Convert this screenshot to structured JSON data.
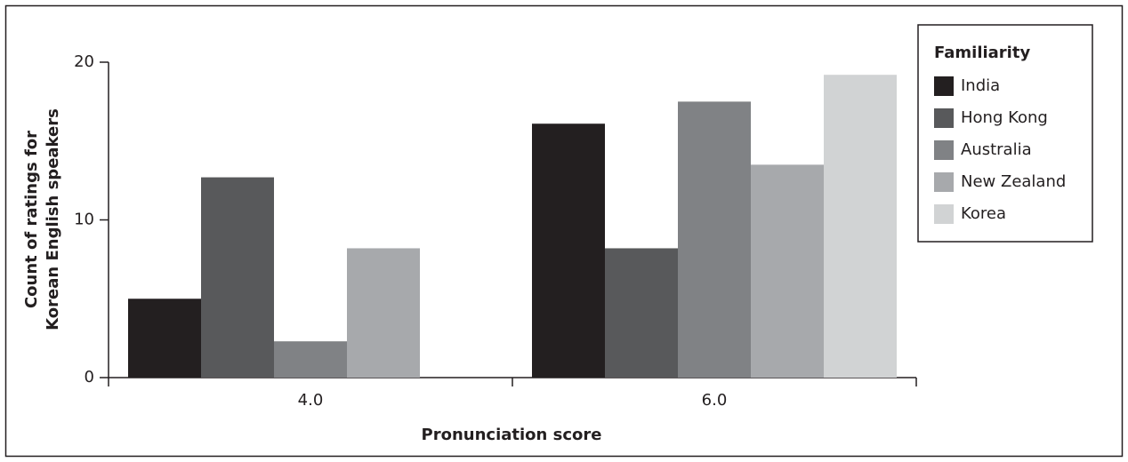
{
  "chart_data": {
    "type": "bar",
    "categories": [
      "4.0",
      "6.0"
    ],
    "series": [
      {
        "name": "India",
        "color": "#231f20",
        "values": [
          5,
          16.1
        ]
      },
      {
        "name": "Hong Kong",
        "color": "#58595b",
        "values": [
          12.7,
          8.2
        ]
      },
      {
        "name": "Australia",
        "color": "#808285",
        "values": [
          2.3,
          17.5
        ]
      },
      {
        "name": "New Zealand",
        "color": "#a7a9ac",
        "values": [
          8.2,
          13.5
        ]
      },
      {
        "name": "Korea",
        "color": "#d1d3d4",
        "values": [
          null,
          19.2
        ]
      }
    ],
    "ylim": [
      0,
      20
    ],
    "yticks": [
      0,
      10,
      20
    ],
    "xlabel": "Pronunciation score",
    "ylabel": [
      "Count of ratings for",
      "Korean English speakers"
    ],
    "legend_title": "Familiarity",
    "legend_position": "upper right",
    "grid": false
  }
}
